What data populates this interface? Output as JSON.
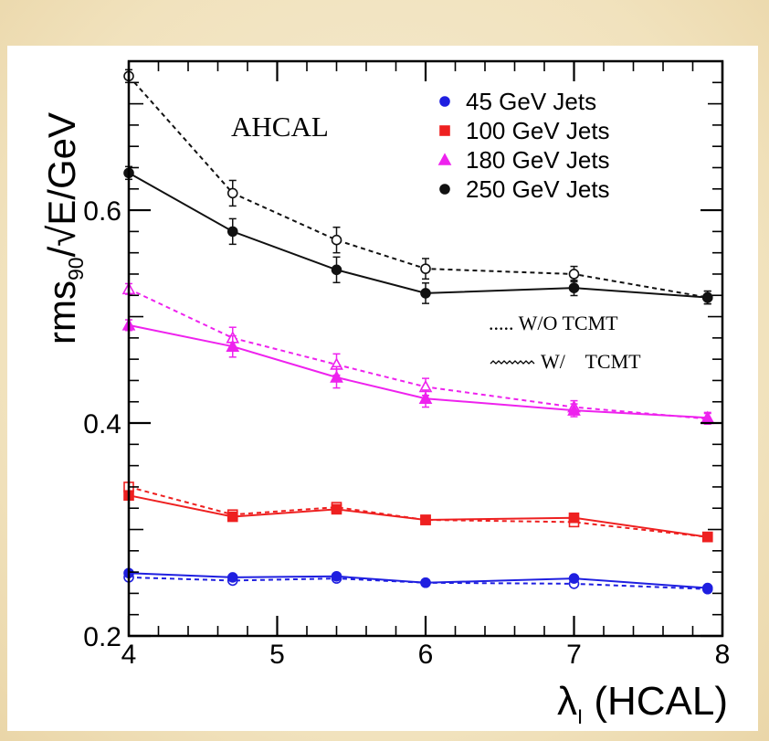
{
  "chart_data": {
    "type": "line",
    "annotation": "AHCAL",
    "xlabel": "λ",
    "xlabel_sub": "I",
    "xlabel_tail": " (HCAL)",
    "ylabel": "rms",
    "ylabel_sub": "90",
    "ylabel_tail": "/√E/GeV",
    "xlim": [
      4,
      8
    ],
    "ylim": [
      0.2,
      0.74
    ],
    "x_ticks": [
      "4",
      "5",
      "6",
      "7",
      "8"
    ],
    "y_ticks": [
      "0.2",
      "0.4",
      "0.6"
    ],
    "x": [
      4,
      4.7,
      5.4,
      6,
      7,
      7.9
    ],
    "legend": {
      "placement": "top-right",
      "entries": [
        "45 GeV Jets",
        "100 GeV Jets",
        "180 GeV Jets",
        "250 GeV Jets"
      ]
    },
    "line_style_legend": [
      "..... W/O TCMT",
      "W/    TCMT"
    ],
    "series": [
      {
        "name": "45 GeV Jets",
        "color": "#1f1fe0",
        "marker": "circle",
        "with_tcmt": [
          0.259,
          0.255,
          0.256,
          0.25,
          0.254,
          0.245
        ],
        "without_tcmt": [
          0.255,
          0.252,
          0.254,
          0.25,
          0.249,
          0.244
        ]
      },
      {
        "name": "100 GeV Jets",
        "color": "#ee2020",
        "marker": "square",
        "with_tcmt": [
          0.332,
          0.312,
          0.319,
          0.309,
          0.311,
          0.293
        ],
        "without_tcmt": [
          0.34,
          0.314,
          0.321,
          0.309,
          0.307,
          0.293
        ]
      },
      {
        "name": "180 GeV Jets",
        "color": "#ee22ee",
        "marker": "triangle",
        "with_tcmt": [
          0.492,
          0.472,
          0.443,
          0.423,
          0.412,
          0.405
        ],
        "without_tcmt": [
          0.526,
          0.48,
          0.455,
          0.434,
          0.415,
          0.404
        ]
      },
      {
        "name": "250 GeV Jets",
        "color": "#111111",
        "marker": "circle",
        "with_tcmt": [
          0.635,
          0.58,
          0.544,
          0.522,
          0.527,
          0.518
        ],
        "without_tcmt": [
          0.726,
          0.616,
          0.572,
          0.545,
          0.54,
          0.518
        ]
      }
    ]
  }
}
